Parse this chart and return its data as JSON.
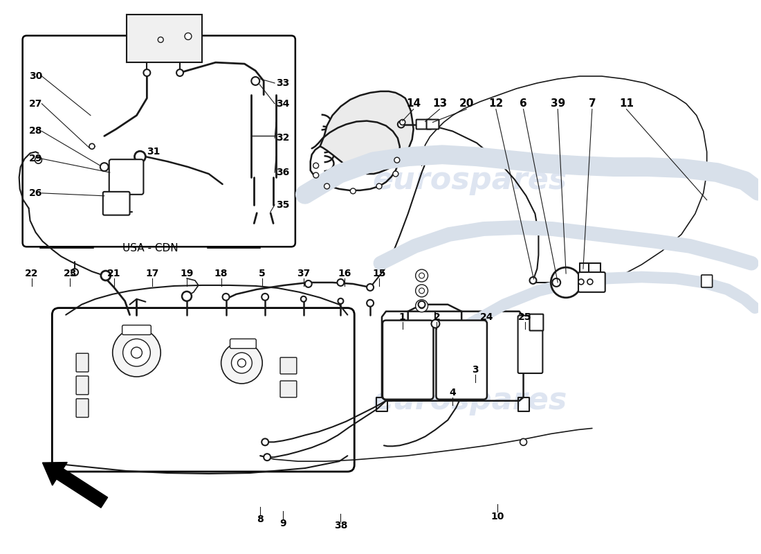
{
  "bg_color": "#ffffff",
  "line_color": "#1a1a1a",
  "gray_fill": "#e8e8e8",
  "watermark_color": "#c8d4e8",
  "watermark_text": "eurospares",
  "usa_cdn_label": "USA - CDN",
  "top_labels": [
    [
      "14",
      598,
      148
    ],
    [
      "13",
      636,
      148
    ],
    [
      "20",
      675,
      148
    ],
    [
      "12",
      718,
      148
    ],
    [
      "6",
      758,
      148
    ],
    [
      "39",
      808,
      148
    ],
    [
      "7",
      858,
      148
    ],
    [
      "11",
      908,
      148
    ]
  ],
  "inset_left_labels": [
    [
      "30",
      48,
      108
    ],
    [
      "27",
      48,
      148
    ],
    [
      "28",
      48,
      188
    ],
    [
      "29",
      48,
      228
    ],
    [
      "26",
      48,
      278
    ]
  ],
  "inset_right_labels": [
    [
      "33",
      408,
      118
    ],
    [
      "34",
      408,
      148
    ],
    [
      "32",
      408,
      198
    ],
    [
      "36",
      408,
      248
    ],
    [
      "35",
      408,
      295
    ]
  ],
  "bottom_left_labels": [
    [
      "22",
      42,
      395
    ],
    [
      "23",
      98,
      395
    ],
    [
      "21",
      162,
      395
    ],
    [
      "17",
      218,
      395
    ],
    [
      "19",
      268,
      395
    ],
    [
      "18",
      318,
      395
    ],
    [
      "5",
      378,
      395
    ],
    [
      "37",
      438,
      395
    ],
    [
      "16",
      498,
      395
    ],
    [
      "15",
      548,
      395
    ]
  ],
  "bottom_right_labels": [
    [
      "1",
      582,
      458
    ],
    [
      "2",
      632,
      458
    ],
    [
      "24",
      705,
      458
    ],
    [
      "25",
      760,
      458
    ],
    [
      "3",
      688,
      535
    ],
    [
      "4",
      655,
      568
    ],
    [
      "8",
      375,
      752
    ],
    [
      "9",
      408,
      758
    ],
    [
      "38",
      492,
      762
    ],
    [
      "10",
      720,
      748
    ]
  ]
}
